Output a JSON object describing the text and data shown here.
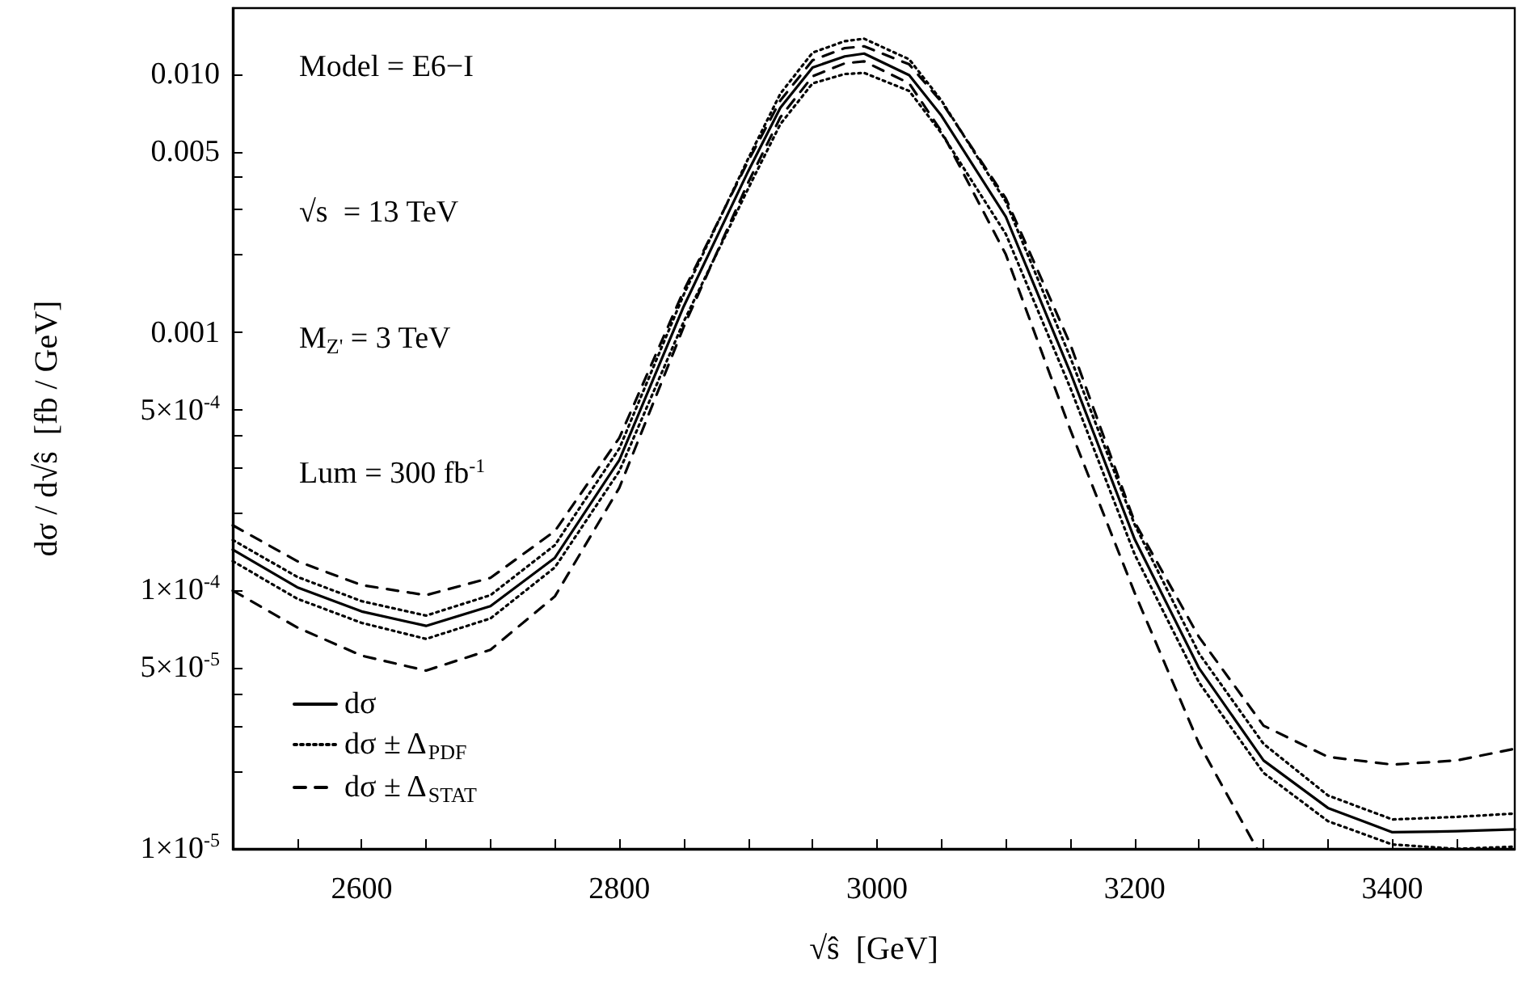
{
  "chart_data": {
    "type": "line",
    "xlabel": "√ŝ  [GeV]",
    "ylabel": "dσ / d√ŝ  [fb / GeV]",
    "annotations": [
      "Model = E6−I",
      "√s  = 13 TeV",
      "M$_{Z'}$ = 3 TeV",
      "Lum = 300 fb$^{-1}$"
    ],
    "x": [
      2500,
      2550,
      2600,
      2650,
      2700,
      2750,
      2800,
      2850,
      2900,
      2925,
      2950,
      2975,
      2990,
      3025,
      3050,
      3100,
      3150,
      3200,
      3250,
      3300,
      3350,
      3400,
      3450,
      3495
    ],
    "series": [
      {
        "name": "dσ",
        "color": "#000000",
        "line_style": "solid",
        "values": [
          0.000144,
          0.000103,
          8.3e-05,
          7.3e-05,
          8.7e-05,
          0.000134,
          0.00032,
          0.00126,
          0.0042,
          0.0074,
          0.0106,
          0.0117,
          0.012,
          0.0099,
          0.0069,
          0.0028,
          0.0007,
          0.000158,
          5e-05,
          2.2e-05,
          1.44e-05,
          1.16e-05,
          1.17e-05,
          1.19e-05
        ]
      },
      {
        "name": "dσ ± Δ$_{PDF}$",
        "color": "#000000",
        "line_style": "dotted",
        "values": [
          0.000157,
          0.000113,
          9.1e-05,
          8e-05,
          9.6e-05,
          0.00015,
          0.000355,
          0.0014,
          0.0047,
          0.0084,
          0.0121,
          0.0134,
          0.0137,
          0.0114,
          0.0079,
          0.0032,
          0.0008,
          0.00018,
          5.7e-05,
          2.55e-05,
          1.61e-05,
          1.3e-05,
          1.33e-05,
          1.37e-05
        ]
      },
      {
        "color": "#000000",
        "line_style": "dotted",
        "values": [
          0.00013,
          9.3e-05,
          7.5e-05,
          6.5e-05,
          7.8e-05,
          0.000123,
          0.00029,
          0.0011,
          0.0036,
          0.0064,
          0.0092,
          0.01,
          0.0101,
          0.0086,
          0.0059,
          0.0024,
          0.00061,
          0.000138,
          4.4e-05,
          1.97e-05,
          1.28e-05,
          1.04e-05,
          1e-05,
          1.02e-05
        ]
      },
      {
        "name": "dσ ± Δ$_{STAT}$",
        "color": "#000000",
        "line_style": "dashed",
        "values": [
          0.000179,
          0.00013,
          0.000105,
          9.6e-05,
          0.000112,
          0.00017,
          0.00039,
          0.00145,
          0.0046,
          0.0079,
          0.0113,
          0.0126,
          0.0128,
          0.0109,
          0.0078,
          0.0033,
          0.0009,
          0.000184,
          6.6e-05,
          3e-05,
          2.27e-05,
          2.12e-05,
          2.2e-05,
          2.44e-05
        ]
      },
      {
        "color": "#000000",
        "line_style": "dashed",
        "x": [
          2500,
          2550,
          2600,
          2650,
          2700,
          2750,
          2800,
          2850,
          2900,
          2925,
          2950,
          2975,
          2990,
          3025,
          3050,
          3100,
          3150,
          3200,
          3250,
          3295
        ],
        "values": [
          0.0001,
          7.2e-05,
          5.6e-05,
          4.9e-05,
          5.9e-05,
          9.5e-05,
          0.00025,
          0.00105,
          0.0038,
          0.0068,
          0.0098,
          0.011,
          0.0112,
          0.0092,
          0.006,
          0.002,
          0.00042,
          9.8e-05,
          2.55e-05,
          1e-05
        ]
      }
    ],
    "xlim": [
      2500,
      3495
    ],
    "xticks": [
      {
        "value": 2550,
        "label": null
      },
      2600,
      {
        "value": 2650,
        "label": null
      },
      {
        "value": 2700,
        "label": null
      },
      {
        "value": 2750,
        "label": null
      },
      2800,
      {
        "value": 2850,
        "label": null
      },
      {
        "value": 2900,
        "label": null
      },
      {
        "value": 2950,
        "label": null
      },
      3000,
      {
        "value": 3050,
        "label": null
      },
      {
        "value": 3100,
        "label": null
      },
      {
        "value": 3150,
        "label": null
      },
      3200,
      {
        "value": 3250,
        "label": null
      },
      {
        "value": 3300,
        "label": null
      },
      {
        "value": 3350,
        "label": null
      },
      3400,
      {
        "value": 3450,
        "label": null
      }
    ],
    "ylim": [
      1e-05,
      0.018
    ],
    "yticks": [
      {
        "value": 1e-05,
        "label": "1×10$^{-5}$"
      },
      {
        "value": 2e-05,
        "label": null
      },
      {
        "value": 3e-05,
        "label": null
      },
      {
        "value": 4e-05,
        "label": null
      },
      {
        "value": 5e-05,
        "label": "5×10$^{-5}$"
      },
      {
        "value": 0.0001,
        "label": "1×10$^{-4}$"
      },
      {
        "value": 0.0002,
        "label": null
      },
      {
        "value": 0.0003,
        "label": null
      },
      {
        "value": 0.0004,
        "label": null
      },
      {
        "value": 0.0005,
        "label": "5×10$^{-4}$"
      },
      {
        "value": 0.001,
        "label": "0.001"
      },
      {
        "value": 0.002,
        "label": null
      },
      {
        "value": 0.003,
        "label": null
      },
      {
        "value": 0.004,
        "label": null
      },
      {
        "value": 0.005,
        "label": "0.005"
      },
      {
        "value": 0.01,
        "label": "0.010"
      }
    ],
    "log": "y",
    "legend": "bottom left",
    "marker": "none",
    "grid": false
  }
}
